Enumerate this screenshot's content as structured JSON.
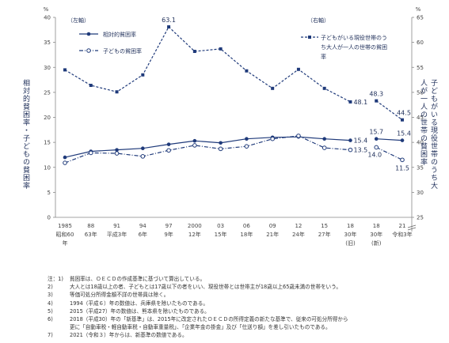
{
  "chart_data": {
    "type": "line",
    "left_axis": {
      "label": "相対的貧困率・子どもの貧困率",
      "unit": "%",
      "tag": "（左軸）",
      "ylim": [
        0,
        40
      ],
      "ticks": [
        "0",
        "5",
        "10",
        "15",
        "20",
        "25",
        "30",
        "35",
        "40"
      ]
    },
    "right_axis": {
      "label": "子どもがいる現役世帯のうち大人が一人の世帯の貧困率",
      "unit": "%",
      "tag": "（右軸）",
      "ylim": [
        25,
        65
      ],
      "ticks": [
        "25",
        "30",
        "35",
        "40",
        "45",
        "50",
        "55",
        "60",
        "65"
      ]
    },
    "x_labels": [
      {
        "year": "1985",
        "era": "昭和60",
        "suffix": "年"
      },
      {
        "year": "88",
        "era": "63年",
        "suffix": ""
      },
      {
        "year": "91",
        "era": "平成3年",
        "suffix": ""
      },
      {
        "year": "94",
        "era": "6年",
        "suffix": ""
      },
      {
        "year": "97",
        "era": "9年",
        "suffix": ""
      },
      {
        "year": "2000",
        "era": "12年",
        "suffix": ""
      },
      {
        "year": "03",
        "era": "15年",
        "suffix": ""
      },
      {
        "year": "06",
        "era": "18年",
        "suffix": ""
      },
      {
        "year": "09",
        "era": "21年",
        "suffix": ""
      },
      {
        "year": "12",
        "era": "24年",
        "suffix": ""
      },
      {
        "year": "15",
        "era": "27年",
        "suffix": ""
      },
      {
        "year": "18",
        "era": "30年",
        "suffix": "(旧)"
      },
      {
        "year": "18",
        "era": "30年",
        "suffix": "(新)"
      },
      {
        "year": "21",
        "era": "令和3年",
        "suffix": ""
      }
    ],
    "series": [
      {
        "name": "相対的貧困率",
        "axis": "left",
        "style": "solid",
        "segments": [
          [
            12.0,
            13.2,
            13.5,
            13.8,
            14.6,
            15.3,
            14.9,
            15.7,
            16.0,
            16.1,
            15.7,
            15.4
          ],
          [
            15.7,
            15.4
          ]
        ]
      },
      {
        "name": "子どもの貧困率",
        "axis": "left",
        "style": "dashdot",
        "segments": [
          [
            10.9,
            12.9,
            12.8,
            12.2,
            13.4,
            14.4,
            13.7,
            14.2,
            15.7,
            16.3,
            13.9,
            13.5
          ],
          [
            14.0,
            11.5
          ]
        ]
      },
      {
        "name": "子どもがいる現役世帯のうち大人が一人の世帯の貧困率",
        "axis": "right",
        "style": "dashed",
        "segments": [
          [
            54.5,
            51.4,
            50.1,
            53.5,
            63.1,
            58.2,
            58.7,
            54.3,
            50.8,
            54.6,
            50.8,
            48.1
          ],
          [
            48.3,
            44.5
          ]
        ]
      }
    ],
    "data_labels": [
      "63.1",
      "48.1",
      "48.3",
      "44.5",
      "15.4",
      "15.7",
      "15.4",
      "13.5",
      "14.0",
      "11.5"
    ]
  },
  "notes": [
    {
      "n": "注：1)",
      "t": "貧困率は、ＯＥＣＤの作成基準に基づいて算出している。"
    },
    {
      "n": "2)",
      "t": "大人とは18歳以上の者、子どもとは17歳以下の者をいい、現役世帯とは世帯主が18歳以上65歳未満の世帯をいう。"
    },
    {
      "n": "3)",
      "t": "等価可処分所得金額不詳の世帯員は除く。"
    },
    {
      "n": "4)",
      "t": "1994（平成６）年の数値は、兵庫県を除いたものである。"
    },
    {
      "n": "5)",
      "t": "2015（平成27）年の数値は、熊本県を除いたものである。"
    },
    {
      "n": "6)",
      "t": "2018（平成30）年の「新基準」は、2015年に改定されたＯＥＣＤの所得定義の新たな基準で、従来の可処分所得から"
    },
    {
      "n": "",
      "t": "更に「自動車税・軽自動車税・自動車重量税」、「企業年金の掛金」及び「仕送り額」を差し引いたものである。"
    },
    {
      "n": "7)",
      "t": "2021（令和３）年からは、新基準の数値である。"
    }
  ]
}
